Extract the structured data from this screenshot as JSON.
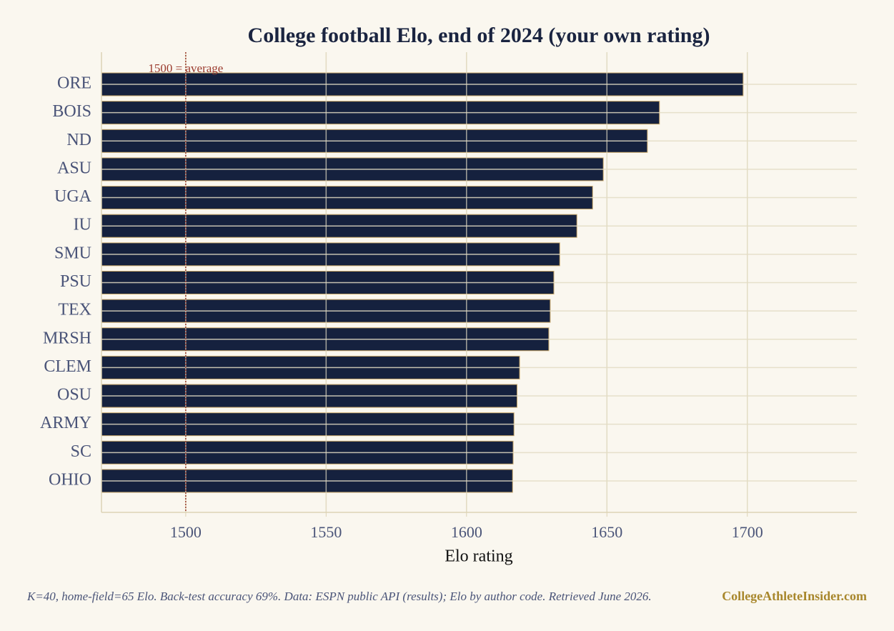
{
  "chart_data": {
    "type": "barh",
    "title": "College football Elo, end of 2024 (your own rating)",
    "x_label": "Elo rating",
    "categories": [
      "ORE",
      "BOIS",
      "ND",
      "ASU",
      "UGA",
      "IU",
      "SMU",
      "PSU",
      "TEX",
      "MRSH",
      "CLEM",
      "OSU",
      "ARMY",
      "SC",
      "OHIO"
    ],
    "values": [
      1698.5,
      1668.7,
      1664.4,
      1648.7,
      1644.9,
      1639.3,
      1633.2,
      1631.1,
      1629.8,
      1629.3,
      1618.9,
      1618.0,
      1616.9,
      1616.6,
      1616.4
    ],
    "color": "#15213e",
    "xlim": [
      1470,
      1739
    ],
    "xticks": [
      1500,
      1550,
      1600,
      1650,
      1700
    ],
    "grid": true,
    "reference_line": {
      "value": 1500,
      "label": "1500 = average",
      "color": "#9b3b2e"
    },
    "footnote": "K=40, home-field=65 Elo. Back-test accuracy 69%.  Data: ESPN public API (results); Elo by author code. Retrieved June 2026.",
    "watermark": "CollegeAthleteInsider.com"
  }
}
